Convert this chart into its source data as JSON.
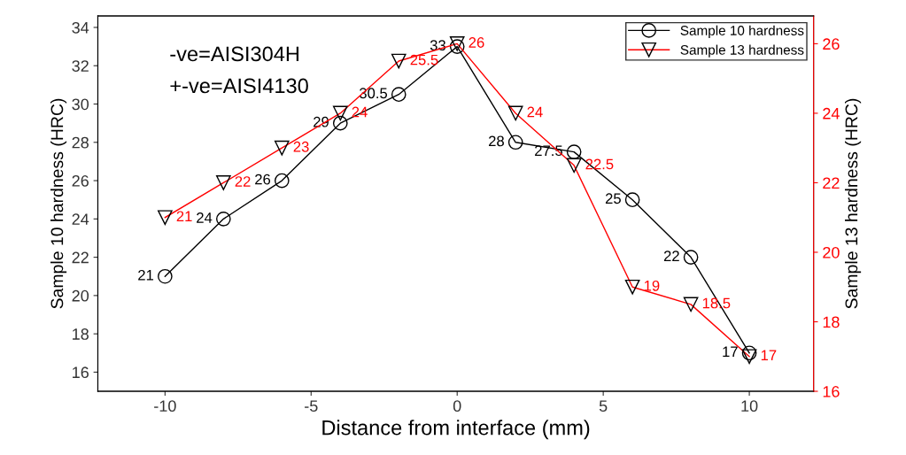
{
  "chart_data": {
    "type": "line",
    "xlabel": "Distance from interface (mm)",
    "ylabel": "Sample 10 hardness (HRC)",
    "y2label": "Sample 13 hardness (HRC)",
    "x": [
      -10,
      -8,
      -6,
      -4,
      -2,
      0,
      2,
      4,
      6,
      8,
      10
    ],
    "series": [
      {
        "name": "Sample 10 hardness",
        "color": "#000000",
        "marker": "circle",
        "values": [
          21,
          24,
          26,
          29,
          30.5,
          33,
          28,
          27.5,
          25,
          22,
          17
        ]
      },
      {
        "name": "Sample 13 hardness",
        "color": "#ff0000",
        "marker": "triangle",
        "axis": "y2",
        "values": [
          21,
          22,
          23,
          24,
          25.5,
          26,
          24,
          22.5,
          19,
          18.5,
          17
        ]
      }
    ],
    "xlim": [
      -12.3,
      12.2
    ],
    "xticks": [
      -10,
      -5,
      0,
      5,
      10
    ],
    "ylim": [
      15,
      34.6
    ],
    "yticks": [
      16,
      18,
      20,
      22,
      24,
      26,
      28,
      30,
      32,
      34
    ],
    "y2lim": [
      16,
      26.8
    ],
    "y2ticks": [
      16,
      18,
      20,
      22,
      24,
      26
    ],
    "data_labels": true,
    "grid": false,
    "legend": "top right",
    "annotations": [
      "-ve=AISI304H",
      "+-ve=AISI4130"
    ]
  }
}
